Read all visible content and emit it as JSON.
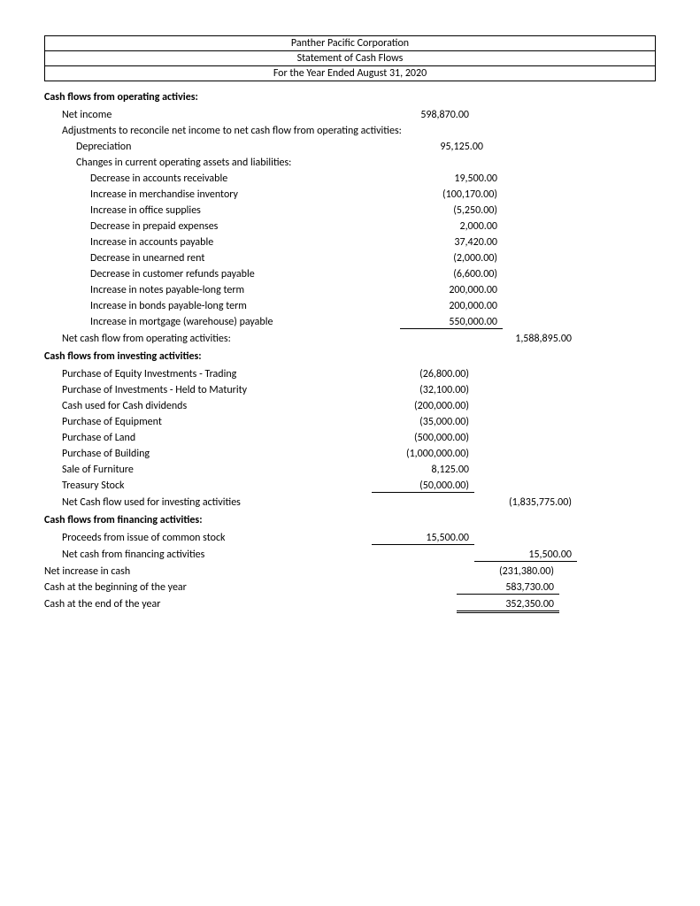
{
  "header": {
    "company": "Panther Pacific Corporation",
    "title": "Statement of Cash Flows",
    "period": "For the Year Ended August 31, 2020"
  },
  "operating": {
    "section_title": "Cash flows from operating activies:",
    "net_income_label": "Net income",
    "net_income_value": "598,870.00",
    "adjustments_label": "Adjustments to reconcile net income to net cash flow from operating activities:",
    "depreciation_label": "Depreciation",
    "depreciation_value": "95,125.00",
    "changes_label": "Changes in current operating assets and liabilities:",
    "items": [
      {
        "label": "Decrease in accounts receivable",
        "value": "19,500.00"
      },
      {
        "label": "Increase in merchandise inventory",
        "value": "(100,170.00)"
      },
      {
        "label": "Increase in office supplies",
        "value": "(5,250.00)"
      },
      {
        "label": "Decrease in prepaid expenses",
        "value": "2,000.00"
      },
      {
        "label": "Increase in accounts payable",
        "value": "37,420.00"
      },
      {
        "label": "Decrease in unearned rent",
        "value": "(2,000.00)"
      },
      {
        "label": "Decrease in customer refunds payable",
        "value": "(6,600.00)"
      },
      {
        "label": "Increase in notes payable-long term",
        "value": "200,000.00"
      },
      {
        "label": "Increase in bonds payable-long term",
        "value": "200,000.00"
      },
      {
        "label": "Increase in mortgage (warehouse) payable",
        "value": "550,000.00"
      }
    ],
    "subtotal_label": "Net cash flow from operating activities:",
    "subtotal_value": "1,588,895.00"
  },
  "investing": {
    "section_title": "Cash flows from investing activities:",
    "items": [
      {
        "label": "Purchase of Equity Investments - Trading",
        "value": "(26,800.00)"
      },
      {
        "label": "Purchase of Investments - Held to Maturity",
        "value": "(32,100.00)"
      },
      {
        "label": "Cash used for Cash dividends",
        "value": "(200,000.00)"
      },
      {
        "label": "Purchase of Equipment",
        "value": "(35,000.00)"
      },
      {
        "label": "Purchase of Land",
        "value": "(500,000.00)"
      },
      {
        "label": "Purchase of Building",
        "value": "(1,000,000.00)"
      },
      {
        "label": "Sale of Furniture",
        "value": "8,125.00"
      },
      {
        "label": "Treasury Stock",
        "value": "(50,000.00)"
      }
    ],
    "subtotal_label": "Net Cash flow used for investing activities",
    "subtotal_value": "(1,835,775.00)"
  },
  "financing": {
    "section_title": "Cash flows from financing activities:",
    "items": [
      {
        "label": "Proceeds from issue of common stock",
        "value": "15,500.00"
      }
    ],
    "subtotal_label": "Net cash from financing activities",
    "subtotal_value": "15,500.00"
  },
  "footer": {
    "net_increase_label": "Net increase in cash",
    "net_increase_value": "(231,380.00)",
    "cash_begin_label": "Cash at the beginning of the year",
    "cash_begin_value": "583,730.00",
    "cash_end_label": "Cash at the end of the year",
    "cash_end_value": "352,350.00"
  }
}
